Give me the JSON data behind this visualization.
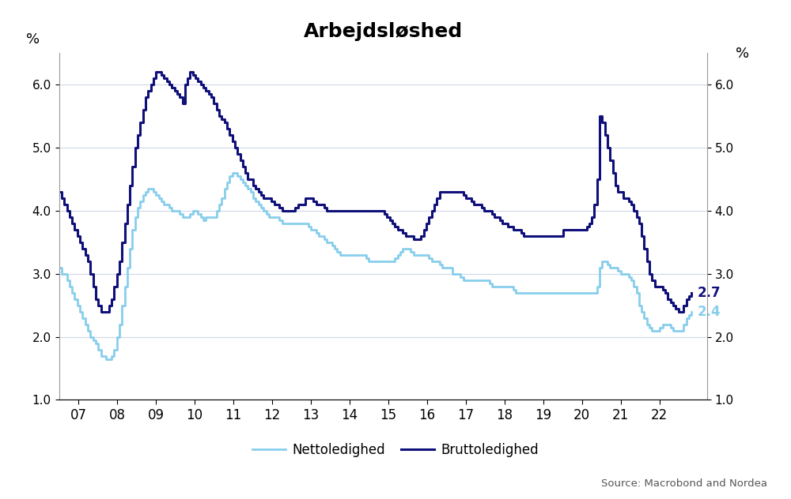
{
  "title": "Arbejdsløshed",
  "ylabel_left": "%",
  "ylabel_right": "%",
  "source": "Source: Macrobond and Nordea",
  "legend_netto": "Nettoledighed",
  "legend_brutto": "Bruttoledighed",
  "color_netto": "#87CEEB",
  "color_brutto": "#10107A",
  "ylim": [
    1.0,
    6.5
  ],
  "yticks": [
    1.0,
    2.0,
    3.0,
    4.0,
    5.0,
    6.0
  ],
  "end_label_brutto": "2.7",
  "end_label_netto": "2.4",
  "background_color": "#ffffff",
  "x_start_year": 2006.5,
  "x_end_year": 2022.83,
  "brutto": [
    4.3,
    4.2,
    4.1,
    4.0,
    3.9,
    3.8,
    3.7,
    3.6,
    3.5,
    3.4,
    3.3,
    3.2,
    3.0,
    2.8,
    2.6,
    2.5,
    2.4,
    2.4,
    2.4,
    2.5,
    2.6,
    2.8,
    3.0,
    3.2,
    3.5,
    3.8,
    4.1,
    4.4,
    4.7,
    5.0,
    5.2,
    5.4,
    5.6,
    5.8,
    5.9,
    6.0,
    6.1,
    6.2,
    6.2,
    6.15,
    6.1,
    6.05,
    6.0,
    5.95,
    5.9,
    5.85,
    5.8,
    5.7,
    6.0,
    6.1,
    6.2,
    6.15,
    6.1,
    6.05,
    6.0,
    5.95,
    5.9,
    5.85,
    5.8,
    5.7,
    5.6,
    5.5,
    5.45,
    5.4,
    5.3,
    5.2,
    5.1,
    5.0,
    4.9,
    4.8,
    4.7,
    4.6,
    4.5,
    4.5,
    4.4,
    4.35,
    4.3,
    4.25,
    4.2,
    4.2,
    4.2,
    4.15,
    4.1,
    4.1,
    4.05,
    4.0,
    4.0,
    4.0,
    4.0,
    4.0,
    4.05,
    4.1,
    4.1,
    4.1,
    4.2,
    4.2,
    4.2,
    4.15,
    4.1,
    4.1,
    4.1,
    4.05,
    4.0,
    4.0,
    4.0,
    4.0,
    4.0,
    4.0,
    4.0,
    4.0,
    4.0,
    4.0,
    4.0,
    4.0,
    4.0,
    4.0,
    4.0,
    4.0,
    4.0,
    4.0,
    4.0,
    4.0,
    4.0,
    4.0,
    3.95,
    3.9,
    3.85,
    3.8,
    3.75,
    3.7,
    3.7,
    3.65,
    3.6,
    3.6,
    3.6,
    3.55,
    3.55,
    3.55,
    3.6,
    3.7,
    3.8,
    3.9,
    4.0,
    4.1,
    4.2,
    4.3,
    4.3,
    4.3,
    4.3,
    4.3,
    4.3,
    4.3,
    4.3,
    4.3,
    4.25,
    4.2,
    4.2,
    4.15,
    4.1,
    4.1,
    4.1,
    4.05,
    4.0,
    4.0,
    4.0,
    3.95,
    3.9,
    3.9,
    3.85,
    3.8,
    3.8,
    3.75,
    3.75,
    3.7,
    3.7,
    3.7,
    3.65,
    3.6,
    3.6,
    3.6,
    3.6,
    3.6,
    3.6,
    3.6,
    3.6,
    3.6,
    3.6,
    3.6,
    3.6,
    3.6,
    3.6,
    3.6,
    3.7,
    3.7,
    3.7,
    3.7,
    3.7,
    3.7,
    3.7,
    3.7,
    3.7,
    3.75,
    3.8,
    3.9,
    4.1,
    4.5,
    5.5,
    5.4,
    5.2,
    5.0,
    4.8,
    4.6,
    4.4,
    4.3,
    4.3,
    4.2,
    4.2,
    4.15,
    4.1,
    4.0,
    3.9,
    3.8,
    3.6,
    3.4,
    3.2,
    3.0,
    2.9,
    2.8,
    2.8,
    2.8,
    2.75,
    2.7,
    2.6,
    2.55,
    2.5,
    2.45,
    2.4,
    2.4,
    2.5,
    2.6,
    2.65,
    2.7
  ],
  "netto": [
    3.1,
    3.0,
    3.0,
    2.9,
    2.8,
    2.7,
    2.6,
    2.5,
    2.4,
    2.3,
    2.2,
    2.1,
    2.0,
    1.95,
    1.9,
    1.8,
    1.7,
    1.7,
    1.65,
    1.65,
    1.7,
    1.8,
    2.0,
    2.2,
    2.5,
    2.8,
    3.1,
    3.4,
    3.7,
    3.9,
    4.05,
    4.15,
    4.25,
    4.3,
    4.35,
    4.35,
    4.3,
    4.25,
    4.2,
    4.15,
    4.1,
    4.1,
    4.05,
    4.0,
    4.0,
    4.0,
    3.95,
    3.9,
    3.9,
    3.9,
    3.95,
    4.0,
    4.0,
    3.95,
    3.9,
    3.85,
    3.9,
    3.9,
    3.9,
    3.9,
    4.0,
    4.1,
    4.2,
    4.35,
    4.45,
    4.55,
    4.6,
    4.6,
    4.55,
    4.5,
    4.45,
    4.4,
    4.35,
    4.3,
    4.2,
    4.15,
    4.1,
    4.05,
    4.0,
    3.95,
    3.9,
    3.9,
    3.9,
    3.9,
    3.85,
    3.8,
    3.8,
    3.8,
    3.8,
    3.8,
    3.8,
    3.8,
    3.8,
    3.8,
    3.8,
    3.75,
    3.7,
    3.7,
    3.65,
    3.6,
    3.6,
    3.55,
    3.5,
    3.5,
    3.45,
    3.4,
    3.35,
    3.3,
    3.3,
    3.3,
    3.3,
    3.3,
    3.3,
    3.3,
    3.3,
    3.3,
    3.3,
    3.25,
    3.2,
    3.2,
    3.2,
    3.2,
    3.2,
    3.2,
    3.2,
    3.2,
    3.2,
    3.2,
    3.25,
    3.3,
    3.35,
    3.4,
    3.4,
    3.4,
    3.35,
    3.3,
    3.3,
    3.3,
    3.3,
    3.3,
    3.3,
    3.25,
    3.2,
    3.2,
    3.2,
    3.15,
    3.1,
    3.1,
    3.1,
    3.1,
    3.0,
    3.0,
    3.0,
    2.95,
    2.9,
    2.9,
    2.9,
    2.9,
    2.9,
    2.9,
    2.9,
    2.9,
    2.9,
    2.9,
    2.85,
    2.8,
    2.8,
    2.8,
    2.8,
    2.8,
    2.8,
    2.8,
    2.8,
    2.75,
    2.7,
    2.7,
    2.7,
    2.7,
    2.7,
    2.7,
    2.7,
    2.7,
    2.7,
    2.7,
    2.7,
    2.7,
    2.7,
    2.7,
    2.7,
    2.7,
    2.7,
    2.7,
    2.7,
    2.7,
    2.7,
    2.7,
    2.7,
    2.7,
    2.7,
    2.7,
    2.7,
    2.7,
    2.7,
    2.7,
    2.7,
    2.8,
    3.1,
    3.2,
    3.2,
    3.15,
    3.1,
    3.1,
    3.1,
    3.05,
    3.0,
    3.0,
    3.0,
    2.95,
    2.9,
    2.8,
    2.7,
    2.5,
    2.4,
    2.3,
    2.2,
    2.15,
    2.1,
    2.1,
    2.1,
    2.15,
    2.2,
    2.2,
    2.2,
    2.15,
    2.1,
    2.1,
    2.1,
    2.1,
    2.2,
    2.3,
    2.35,
    2.4
  ]
}
